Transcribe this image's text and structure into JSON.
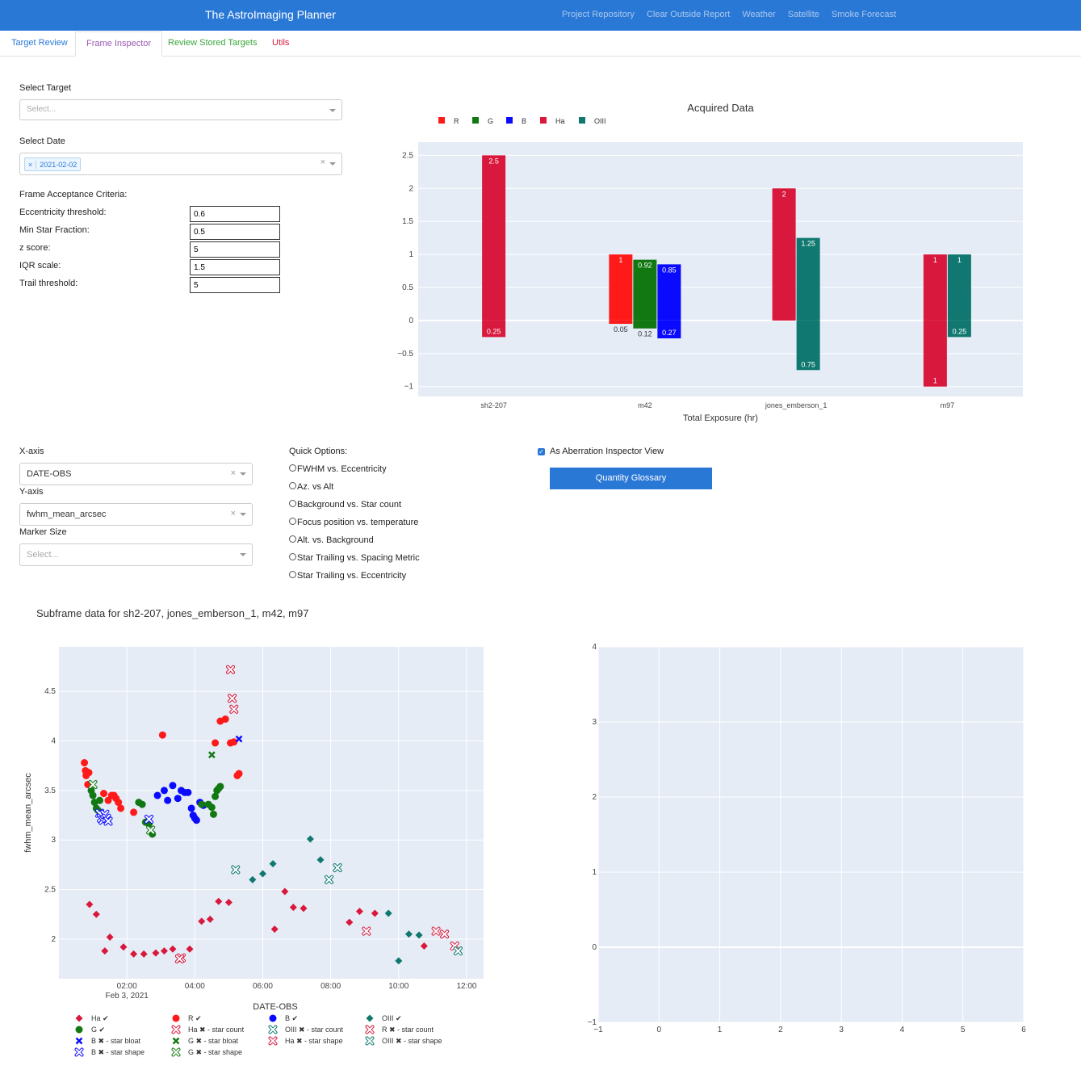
{
  "navbar": {
    "brand": "The AstroImaging Planner",
    "links": [
      "Project Repository",
      "Clear Outside Report",
      "Weather",
      "Satellite",
      "Smoke Forecast"
    ]
  },
  "tabs": [
    {
      "label": "Target Review",
      "color": "#2a78d6"
    },
    {
      "label": "Frame Inspector",
      "color": "#9b59b6"
    },
    {
      "label": "Review Stored Targets",
      "color": "#3aa63a"
    },
    {
      "label": "Utils",
      "color": "#d8183c"
    }
  ],
  "form": {
    "select_target_label": "Select Target",
    "select_target_placeholder": "Select...",
    "select_date_label": "Select Date",
    "selected_date": "2021-02-02",
    "criteria_label": "Frame Acceptance Criteria:",
    "criteria": [
      {
        "label": "Eccentricity threshold:",
        "value": "0.6"
      },
      {
        "label": "Min Star Fraction:",
        "value": "0.5"
      },
      {
        "label": "z score:",
        "value": "5"
      },
      {
        "label": "IQR scale:",
        "value": "1.5"
      },
      {
        "label": "Trail threshold:",
        "value": "5"
      }
    ]
  },
  "axes_controls": {
    "x_label": "X-axis",
    "x_value": "DATE-OBS",
    "y_label": "Y-axis",
    "y_value": "fwhm_mean_arcsec",
    "marker_label": "Marker Size",
    "marker_placeholder": "Select..."
  },
  "quick_options": {
    "label": "Quick Options:",
    "options": [
      "FWHM vs. Eccentricity",
      "Az. vs Alt",
      "Background vs. Star count",
      "Focus position vs. temperature",
      "Alt. vs. Background",
      "Star Trailing vs. Spacing Metric",
      "Star Trailing vs. Eccentricity"
    ]
  },
  "aberration": {
    "label": "As Aberration Inspector View",
    "checked": true,
    "glossary_button": "Quantity Glossary"
  },
  "chart_data": [
    {
      "type": "bar",
      "title": "Acquired Data",
      "xlabel": "Total Exposure (hr)",
      "ylabel": "",
      "ylim": [
        -1.15,
        2.7
      ],
      "yticks": [
        -1,
        -0.5,
        0,
        0.5,
        1,
        1.5,
        2,
        2.5
      ],
      "ytick_labels": [
        "−1",
        "−0.5",
        "0",
        "0.5",
        "1",
        "1.5",
        "2",
        "2.5"
      ],
      "categories": [
        "sh2-207",
        "m42",
        "jones_emberson_1",
        "m97"
      ],
      "legend_position": "top-left",
      "series": [
        {
          "name": "R",
          "color": "#ff1a1a",
          "values": [
            0,
            1,
            0,
            0
          ],
          "neg": [
            0,
            0.05,
            0,
            0
          ]
        },
        {
          "name": "G",
          "color": "#127812",
          "values": [
            0,
            0.92,
            0,
            0
          ],
          "neg": [
            0,
            0.12,
            0,
            0
          ]
        },
        {
          "name": "B",
          "color": "#0a0aff",
          "values": [
            0,
            0.85,
            0,
            0
          ],
          "neg": [
            0,
            0.27,
            0,
            0
          ]
        },
        {
          "name": "Ha",
          "color": "#d8183c",
          "values": [
            2.5,
            0,
            2,
            1
          ],
          "neg": [
            0.25,
            0,
            0,
            1
          ]
        },
        {
          "name": "OIII",
          "color": "#107870",
          "values": [
            0,
            0,
            1.25,
            1
          ],
          "neg": [
            0,
            0,
            0.75,
            0.25
          ]
        }
      ],
      "value_labels": [
        {
          "cat": "sh2-207",
          "series": "Ha",
          "pos": "2.5",
          "neg": "0.25"
        },
        {
          "cat": "m42",
          "series": "R",
          "pos": "1",
          "neg": "0.05"
        },
        {
          "cat": "m42",
          "series": "G",
          "pos": "0.92",
          "neg": "0.12"
        },
        {
          "cat": "m42",
          "series": "B",
          "pos": "0.85",
          "neg": "0.27"
        },
        {
          "cat": "jones_emberson_1",
          "series": "Ha",
          "pos": "2",
          "neg": ""
        },
        {
          "cat": "jones_emberson_1",
          "series": "OIII",
          "pos": "1.25",
          "neg": "0.75"
        },
        {
          "cat": "m97",
          "series": "Ha",
          "pos": "1",
          "neg": "1"
        },
        {
          "cat": "m97",
          "series": "OIII",
          "pos": "1",
          "neg": "0.25"
        }
      ]
    },
    {
      "type": "scatter",
      "title": "Subframe data for sh2-207, jones_emberson_1, m42, m97",
      "xlabel": "DATE-OBS",
      "ylabel": "fwhm_mean_arcsec",
      "x_unit": "hours after midnight, Feb 3, 2021",
      "xlim": [
        0.0,
        12.5
      ],
      "ylim": [
        1.6,
        4.95
      ],
      "xticks": [
        2,
        4,
        6,
        8,
        10,
        12
      ],
      "xtick_labels": [
        "02:00",
        "04:00",
        "06:00",
        "08:00",
        "10:00",
        "12:00"
      ],
      "xtick_sublabel": "Feb 3, 2021",
      "yticks": [
        2,
        2.5,
        3,
        3.5,
        4,
        4.5
      ],
      "ytick_labels": [
        "2",
        "2.5",
        "3",
        "3.5",
        "4",
        "4.5"
      ],
      "series": [
        {
          "name": "Ha ✔",
          "color": "#d8183c",
          "symbol": "diamond",
          "x": [
            0.9,
            1.1,
            1.35,
            1.5,
            1.9,
            2.2,
            2.5,
            2.85,
            3.1,
            3.35,
            3.85,
            4.2,
            4.45,
            4.7,
            5.0,
            6.35,
            6.65,
            6.9,
            7.2,
            8.55,
            8.85,
            9.3,
            10.75
          ],
          "y": [
            2.35,
            2.25,
            1.88,
            2.02,
            1.92,
            1.85,
            1.85,
            1.86,
            1.88,
            1.9,
            1.9,
            2.18,
            2.2,
            2.38,
            2.37,
            2.1,
            2.48,
            2.32,
            2.31,
            2.17,
            2.28,
            2.26,
            1.93
          ]
        },
        {
          "name": "R ✔",
          "color": "#ff1a1a",
          "symbol": "circle",
          "x": [
            0.75,
            0.8,
            0.88,
            0.78,
            0.85,
            1.32,
            1.45,
            1.55,
            1.62,
            1.68,
            1.75,
            1.82,
            2.2,
            3.05,
            4.6,
            4.75,
            4.9,
            5.05,
            5.15,
            5.25,
            5.3
          ],
          "y": [
            3.78,
            3.65,
            3.68,
            3.7,
            3.56,
            3.47,
            3.4,
            3.45,
            3.45,
            3.42,
            3.38,
            3.32,
            3.28,
            4.06,
            3.98,
            4.2,
            4.22,
            3.98,
            3.99,
            3.65,
            3.67
          ]
        },
        {
          "name": "B ✔",
          "color": "#0a0aff",
          "symbol": "circle",
          "x": [
            2.9,
            3.1,
            3.2,
            3.35,
            3.5,
            3.6,
            3.7,
            3.8,
            3.9,
            3.95,
            4.0,
            4.05,
            4.15,
            4.25
          ],
          "y": [
            3.45,
            3.5,
            3.4,
            3.55,
            3.42,
            3.5,
            3.48,
            3.48,
            3.32,
            3.25,
            3.22,
            3.2,
            3.38,
            3.35
          ]
        },
        {
          "name": "OIII ✔",
          "color": "#107870",
          "symbol": "diamond",
          "x": [
            5.7,
            6.0,
            6.3,
            7.4,
            7.7,
            9.7,
            10.0,
            10.3,
            10.6
          ],
          "y": [
            2.6,
            2.66,
            2.76,
            3.01,
            2.8,
            2.26,
            1.78,
            2.05,
            2.04
          ]
        },
        {
          "name": "G ✔",
          "color": "#127812",
          "symbol": "circle",
          "x": [
            0.95,
            1.0,
            1.05,
            1.1,
            1.15,
            1.2,
            2.35,
            2.45,
            2.55,
            2.65,
            2.75,
            4.2,
            4.4,
            4.5,
            4.55,
            4.6,
            4.65,
            4.7,
            4.75
          ],
          "y": [
            3.5,
            3.45,
            3.38,
            3.32,
            3.3,
            3.4,
            3.38,
            3.36,
            3.18,
            3.16,
            3.06,
            3.36,
            3.36,
            3.33,
            3.26,
            3.44,
            3.5,
            3.52,
            3.54
          ]
        },
        {
          "name": "Ha ✖ - star count",
          "color": "#d8183c",
          "symbol": "x-open",
          "x": [
            3.6,
            9.05,
            11.1,
            11.35,
            11.65
          ],
          "y": [
            1.81,
            2.08,
            2.08,
            2.05,
            1.93
          ]
        },
        {
          "name": "OIII ✖ - star count",
          "color": "#107870",
          "symbol": "x-open",
          "x": [
            5.2,
            7.95,
            8.2
          ],
          "y": [
            2.7,
            2.6,
            2.72
          ]
        },
        {
          "name": "R ✖ - star count",
          "color": "#d8183c",
          "symbol": "x-open",
          "x": [
            5.05,
            5.1,
            5.15
          ],
          "y": [
            4.72,
            4.43,
            4.32
          ]
        },
        {
          "name": "B ✖ - star bloat",
          "color": "#0a0aff",
          "symbol": "x",
          "x": [
            5.3
          ],
          "y": [
            4.02
          ]
        },
        {
          "name": "G ✖ - star bloat",
          "color": "#127812",
          "symbol": "x",
          "x": [
            4.5
          ],
          "y": [
            3.86
          ]
        },
        {
          "name": "Ha ✖ - star shape",
          "color": "#d8183c",
          "symbol": "x-open",
          "x": [
            3.55
          ],
          "y": [
            1.8
          ]
        },
        {
          "name": "OIII ✖ - star shape",
          "color": "#107870",
          "symbol": "x-open",
          "x": [
            11.75
          ],
          "y": [
            1.88
          ]
        },
        {
          "name": "B ✖ - star shape",
          "color": "#0a0aff",
          "symbol": "x-open",
          "x": [
            1.2,
            1.25,
            1.3,
            1.35,
            1.4,
            1.45,
            2.65
          ],
          "y": [
            3.27,
            3.22,
            3.2,
            3.26,
            3.22,
            3.19,
            3.21
          ]
        },
        {
          "name": "G ✖ - star shape",
          "color": "#127812",
          "symbol": "x-open",
          "x": [
            1.0,
            2.7
          ],
          "y": [
            3.56,
            3.1
          ]
        }
      ]
    },
    {
      "type": "scatter",
      "title": "",
      "xlabel": "",
      "ylabel": "",
      "xlim": [
        -1,
        6
      ],
      "ylim": [
        -1,
        4
      ],
      "xticks": [
        -1,
        0,
        1,
        2,
        3,
        4,
        5,
        6
      ],
      "xtick_labels": [
        "−1",
        "0",
        "1",
        "2",
        "3",
        "4",
        "5",
        "6"
      ],
      "yticks": [
        -1,
        0,
        1,
        2,
        3,
        4
      ],
      "ytick_labels": [
        "−1",
        "0",
        "1",
        "2",
        "3",
        "4"
      ],
      "series": []
    }
  ]
}
